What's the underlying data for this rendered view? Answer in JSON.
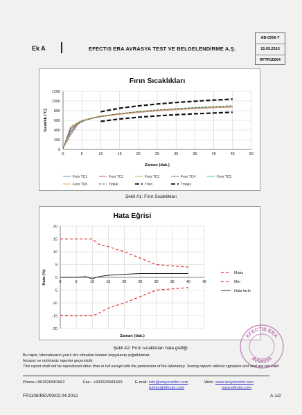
{
  "header": {
    "annex": "Ek A",
    "company": "EFECTIS ERA AVRASYA TEST VE BELGELENDİRME A.Ş.",
    "doc_code": "AB-0556-T",
    "date": "15.05.2015",
    "report_no": "RFTR15064"
  },
  "figure1": {
    "caption": "Şekil A1: Fırın Sıcaklıkları",
    "chart_data": {
      "type": "line",
      "title": "Fırın Sıcaklıkları",
      "xlabel": "Zaman (dak.)",
      "ylabel": "Sıcaklık (°C)",
      "xlim": [
        0,
        50
      ],
      "ylim": [
        0,
        1200
      ],
      "xticks": [
        0,
        5,
        10,
        15,
        20,
        25,
        30,
        35,
        40,
        45,
        50
      ],
      "yticks": [
        0,
        200,
        400,
        600,
        800,
        1000,
        1200
      ],
      "grid": true,
      "legend_position": "bottom",
      "x": [
        0,
        2,
        4,
        5,
        6,
        8,
        10,
        15,
        20,
        25,
        30,
        35,
        40,
        45
      ],
      "series": [
        {
          "name": "Fırın TC1",
          "color": "#4f81bd",
          "style": "solid",
          "values": [
            20,
            360,
            540,
            580,
            610,
            650,
            680,
            730,
            770,
            800,
            825,
            845,
            865,
            880
          ]
        },
        {
          "name": "Fırın TC2",
          "color": "#c0504d",
          "style": "solid",
          "values": [
            20,
            420,
            550,
            590,
            615,
            655,
            685,
            735,
            775,
            805,
            830,
            850,
            870,
            885
          ]
        },
        {
          "name": "Fırın TC3",
          "color": "#9bbb59",
          "style": "solid",
          "values": [
            20,
            470,
            560,
            595,
            620,
            660,
            690,
            740,
            780,
            810,
            835,
            855,
            875,
            890
          ]
        },
        {
          "name": "Fırın TC4",
          "color": "#8064a2",
          "style": "solid",
          "values": [
            20,
            300,
            520,
            570,
            605,
            645,
            675,
            725,
            765,
            795,
            820,
            840,
            860,
            875
          ]
        },
        {
          "name": "Fırın TC5",
          "color": "#4bacc6",
          "style": "solid",
          "values": [
            20,
            380,
            545,
            585,
            612,
            652,
            682,
            732,
            772,
            802,
            828,
            848,
            868,
            884
          ]
        },
        {
          "name": "Fırın TC6",
          "color": "#f79646",
          "style": "solid",
          "values": [
            20,
            330,
            530,
            575,
            608,
            648,
            678,
            728,
            768,
            798,
            822,
            842,
            862,
            878
          ]
        },
        {
          "name": "Tideal",
          "color": "#555555",
          "style": "dash-thin",
          "values": [
            20,
            445,
            544,
            576,
            603,
            645,
            678,
            739,
            781,
            815,
            842,
            865,
            885,
            902
          ]
        },
        {
          "name": "Tmin",
          "color": "#111111",
          "style": "dash-thick",
          "x": [
            10,
            15,
            20,
            25,
            30,
            35,
            40,
            45
          ],
          "values": [
            578,
            628,
            664,
            693,
            716,
            735,
            752,
            767
          ]
        },
        {
          "name": "Tmaks",
          "color": "#111111",
          "style": "dash-thick",
          "x": [
            10,
            15,
            20,
            25,
            30,
            35,
            40,
            45
          ],
          "values": [
            779,
            850,
            898,
            937,
            968,
            994,
            1018,
            1037
          ]
        }
      ]
    }
  },
  "figure2": {
    "caption": "Şekil A2: Fırın sıcaklıkları hata grafiği.",
    "chart_data": {
      "type": "line",
      "title": "Hata Eğrisi",
      "xlabel": "Zaman (dak.)",
      "ylabel": "Hata (%)",
      "xlim": [
        0,
        45
      ],
      "ylim": [
        -20,
        20
      ],
      "xticks": [
        0,
        5,
        10,
        15,
        20,
        25,
        30,
        35,
        40,
        45
      ],
      "yticks": [
        -20,
        -15,
        -10,
        -5,
        0,
        5,
        10,
        15,
        20
      ],
      "grid": true,
      "legend_position": "right",
      "series": [
        {
          "name": "Maks",
          "color": "#e0302a",
          "style": "dash",
          "x": [
            0,
            5,
            10,
            12,
            15,
            20,
            25,
            30,
            35,
            40
          ],
          "values": [
            15,
            15,
            15,
            13,
            12,
            10,
            7.5,
            5,
            4.5,
            4
          ]
        },
        {
          "name": "Min",
          "color": "#e0302a",
          "style": "dash",
          "x": [
            0,
            5,
            10,
            12,
            15,
            20,
            25,
            30,
            35,
            40
          ],
          "values": [
            -15,
            -15,
            -15,
            -14,
            -12,
            -10,
            -7.5,
            -5,
            -4.5,
            -4
          ]
        },
        {
          "name": "Hata farkı",
          "color": "#111111",
          "style": "solid",
          "x": [
            0,
            5,
            8,
            10,
            12,
            15,
            20,
            25,
            30,
            35,
            40
          ],
          "values": [
            0,
            0,
            0.3,
            -0.6,
            0.3,
            0.8,
            1.2,
            1.5,
            1.5,
            1.5,
            1.5
          ]
        }
      ]
    }
  },
  "footer": {
    "note1": "Bu rapor, laboratuvarın yazılı izni olmadan kısmen kopyalanıp çoğaltılamaz.",
    "note2": "İmzasız ve mühürsüz raporlar geçersizdir.",
    "note3": "This report shall not be reproduced other than in full except with the permission of the laboratory. Testing reports without signature and seal are not valid",
    "phone": "Phone:+902626581662",
    "fax": "Fax.: +902626581669",
    "email_label": "E-mail:",
    "email1": "info@erayonetim.com",
    "email2": "turkey@efectis.com",
    "web_label": "Web:",
    "web1": "www.erayonetim.com",
    "web2": "www.efectis.com",
    "form_code": "FR1108/REV00/02.04.2012",
    "page": "A-1/2"
  },
  "stamp": {
    "text_top": "EFECTIS ERA",
    "text_bottom": "AVRASYA"
  }
}
